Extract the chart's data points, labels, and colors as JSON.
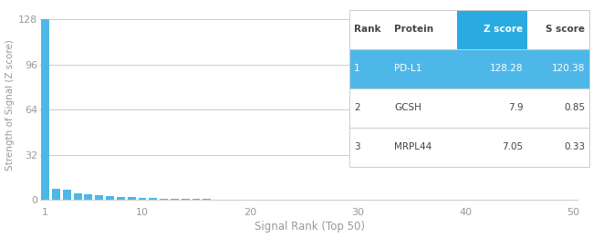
{
  "bar_color": "#4db8e8",
  "background_color": "#ffffff",
  "xlabel": "Signal Rank (Top 50)",
  "ylabel": "Strength of Signal (Z score)",
  "yticks": [
    0,
    32,
    64,
    96,
    128
  ],
  "xticks": [
    1,
    10,
    20,
    30,
    40,
    50
  ],
  "xlim": [
    0.5,
    50.5
  ],
  "ylim": [
    -4,
    138
  ],
  "top_rank": 50,
  "peak_value": 128.28,
  "table_data": [
    {
      "rank": "1",
      "protein": "PD-L1",
      "zscore": "128.28",
      "sscore": "120.38",
      "highlight": true
    },
    {
      "rank": "2",
      "protein": "GCSH",
      "zscore": "7.9",
      "sscore": "0.85",
      "highlight": false
    },
    {
      "rank": "3",
      "protein": "MRPL44",
      "zscore": "7.05",
      "sscore": "0.33",
      "highlight": false
    }
  ],
  "table_header_color": "#29abe2",
  "table_row_highlight_color": "#4db8e8",
  "table_text_light": "#ffffff",
  "table_text_dark": "#444444",
  "grid_color": "#cccccc",
  "axis_color": "#999999",
  "tick_color": "#999999"
}
